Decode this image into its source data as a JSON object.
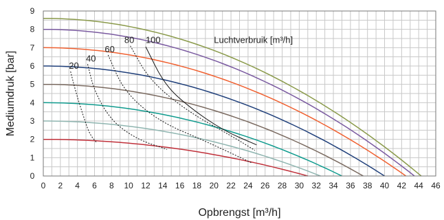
{
  "chart_data": {
    "type": "line",
    "title": "",
    "xlabel": "Opbrengst [m³/h]",
    "ylabel": "Mediumdruk [bar]",
    "xlim": [
      0,
      46
    ],
    "ylim": [
      0,
      9
    ],
    "x_ticks": [
      "0",
      "2",
      "4",
      "6",
      "8",
      "10",
      "12",
      "14",
      "16",
      "18",
      "20",
      "22",
      "24",
      "26",
      "28",
      "30",
      "32",
      "34",
      "36",
      "38",
      "40",
      "42",
      "44",
      "46"
    ],
    "y_ticks": [
      "0",
      "1",
      "2",
      "3",
      "4",
      "5",
      "6",
      "7",
      "8",
      "9"
    ],
    "grid": true,
    "legend": "none",
    "annotation": "Luchtverbruik [m³/h]",
    "series": [
      {
        "color": "#c0303a",
        "p0": 2,
        "q0": 31
      },
      {
        "color": "#8fb5b0",
        "p0": 3,
        "q0": 32.5
      },
      {
        "color": "#0f9b8e",
        "p0": 4,
        "q0": 35
      },
      {
        "color": "#7a6a60",
        "p0": 5,
        "q0": 37.5
      },
      {
        "color": "#1f3f7a",
        "p0": 6,
        "q0": 40
      },
      {
        "color": "#f06030",
        "p0": 7,
        "q0": 42.5
      },
      {
        "color": "#7a5aa0",
        "p0": 8,
        "q0": 43.5
      },
      {
        "color": "#8a9a4a",
        "p0": 8.6,
        "q0": 44.3
      }
    ],
    "air_consumption_curves": [
      {
        "label": "20",
        "label_x": 3,
        "label_y": 6.0,
        "x": [
          3.2,
          3.8,
          4.6,
          5.4,
          6.2
        ],
        "y": [
          5.7,
          4.6,
          3.4,
          2.3,
          1.85
        ],
        "style": "dashed"
      },
      {
        "label": "40",
        "label_x": 5,
        "label_y": 6.4,
        "x": [
          5.2,
          6.0,
          8.0,
          11.0,
          14.5
        ],
        "y": [
          6.1,
          4.6,
          3.0,
          2.0,
          1.45
        ],
        "style": "dashed"
      },
      {
        "label": "60",
        "label_x": 7.2,
        "label_y": 6.9,
        "x": [
          7.6,
          9.5,
          13.5,
          19.0,
          24.5
        ],
        "y": [
          6.6,
          4.6,
          3.0,
          1.9,
          0.7
        ],
        "style": "dashed"
      },
      {
        "label": "80",
        "label_x": 9.5,
        "label_y": 7.4,
        "x": [
          10.2,
          12.5,
          17.0,
          22.0,
          24.8
        ],
        "y": [
          7.1,
          5.2,
          3.5,
          2.2,
          1.4
        ],
        "style": "dashed"
      },
      {
        "label": "100",
        "label_x": 12,
        "label_y": 7.4,
        "x": [
          12.0,
          14.2,
          17.0,
          21.0,
          25.0
        ],
        "y": [
          7.05,
          5.0,
          3.8,
          2.5,
          1.7
        ],
        "style": "solid"
      }
    ]
  }
}
